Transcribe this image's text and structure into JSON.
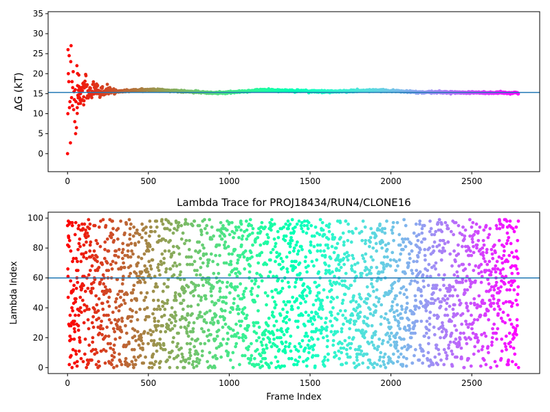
{
  "chart_data": [
    {
      "type": "scatter",
      "title": "",
      "xlabel": "",
      "ylabel": "ΔG (kT)",
      "xlim": [
        -120,
        2920
      ],
      "ylim": [
        -4.5,
        35.5
      ],
      "xticks": [
        0,
        500,
        1000,
        1500,
        2000,
        2500
      ],
      "yticks": [
        0,
        5,
        10,
        15,
        20,
        25,
        30,
        35
      ],
      "hline": 15.3,
      "hline_color": "#1f77b4",
      "colormap": "rainbow (reversed: red at frame 0, violet at last frame)",
      "n_points": 2790,
      "series": [
        {
          "values_description": "running free-energy estimate per frame",
          "points": [
            [
              0,
              0.0
            ],
            [
              2,
              10.0
            ],
            [
              3,
              26.0
            ],
            [
              5,
              20.0
            ],
            [
              8,
              18.0
            ],
            [
              10,
              24.5
            ],
            [
              12,
              11.5
            ],
            [
              15,
              13.0
            ],
            [
              18,
              2.7
            ],
            [
              20,
              23.0
            ],
            [
              22,
              27.0
            ],
            [
              25,
              14.0
            ],
            [
              28,
              18.0
            ],
            [
              30,
              12.0
            ],
            [
              32,
              16.5
            ],
            [
              35,
              20.5
            ],
            [
              38,
              11.0
            ],
            [
              40,
              15.5
            ],
            [
              42,
              13.5
            ],
            [
              45,
              8.0
            ],
            [
              48,
              16.0
            ],
            [
              50,
              5.0
            ],
            [
              52,
              13.0
            ],
            [
              55,
              6.5
            ],
            [
              58,
              22.0
            ],
            [
              60,
              11.5
            ],
            [
              62,
              17.0
            ],
            [
              65,
              14.5
            ],
            [
              68,
              12.5
            ],
            [
              70,
              16.8
            ],
            [
              75,
              14.0
            ],
            [
              80,
              15.0
            ],
            [
              85,
              16.5
            ],
            [
              90,
              13.5
            ],
            [
              95,
              17.5
            ],
            [
              100,
              14.2
            ],
            [
              110,
              18.5
            ],
            [
              120,
              16.0
            ],
            [
              130,
              14.5
            ],
            [
              150,
              15.5
            ],
            [
              175,
              16.5
            ],
            [
              200,
              15.0
            ],
            [
              250,
              16.0
            ],
            [
              300,
              15.5
            ],
            [
              400,
              15.8
            ],
            [
              500,
              16.0
            ],
            [
              600,
              15.8
            ],
            [
              700,
              15.6
            ],
            [
              800,
              15.4
            ],
            [
              900,
              15.2
            ],
            [
              1000,
              15.3
            ],
            [
              1100,
              15.6
            ],
            [
              1200,
              15.9
            ],
            [
              1300,
              15.8
            ],
            [
              1400,
              15.7
            ],
            [
              1500,
              15.6
            ],
            [
              1600,
              15.5
            ],
            [
              1700,
              15.6
            ],
            [
              1800,
              15.7
            ],
            [
              1900,
              15.8
            ],
            [
              2000,
              15.7
            ],
            [
              2100,
              15.5
            ],
            [
              2200,
              15.3
            ],
            [
              2300,
              15.4
            ],
            [
              2400,
              15.3
            ],
            [
              2500,
              15.3
            ],
            [
              2600,
              15.2
            ],
            [
              2700,
              15.2
            ],
            [
              2789,
              15.2
            ]
          ]
        }
      ]
    },
    {
      "type": "scatter",
      "title": "Lambda Trace for PROJ18434/RUN4/CLONE16",
      "xlabel": "Frame Index",
      "ylabel": "Lambda Index",
      "xlim": [
        -120,
        2920
      ],
      "ylim": [
        -4,
        104
      ],
      "xticks": [
        0,
        500,
        1000,
        1500,
        2000,
        2500
      ],
      "yticks": [
        0,
        20,
        40,
        60,
        80,
        100
      ],
      "hline": 60,
      "hline_color": "#1f77b4",
      "colormap": "rainbow (reversed: red at frame 0, violet at last frame)",
      "n_points": 2790,
      "series": [
        {
          "values_description": "lambda window index visited at each frame, roughly uniform over 0–99",
          "y_range": [
            0,
            99
          ]
        }
      ]
    }
  ]
}
